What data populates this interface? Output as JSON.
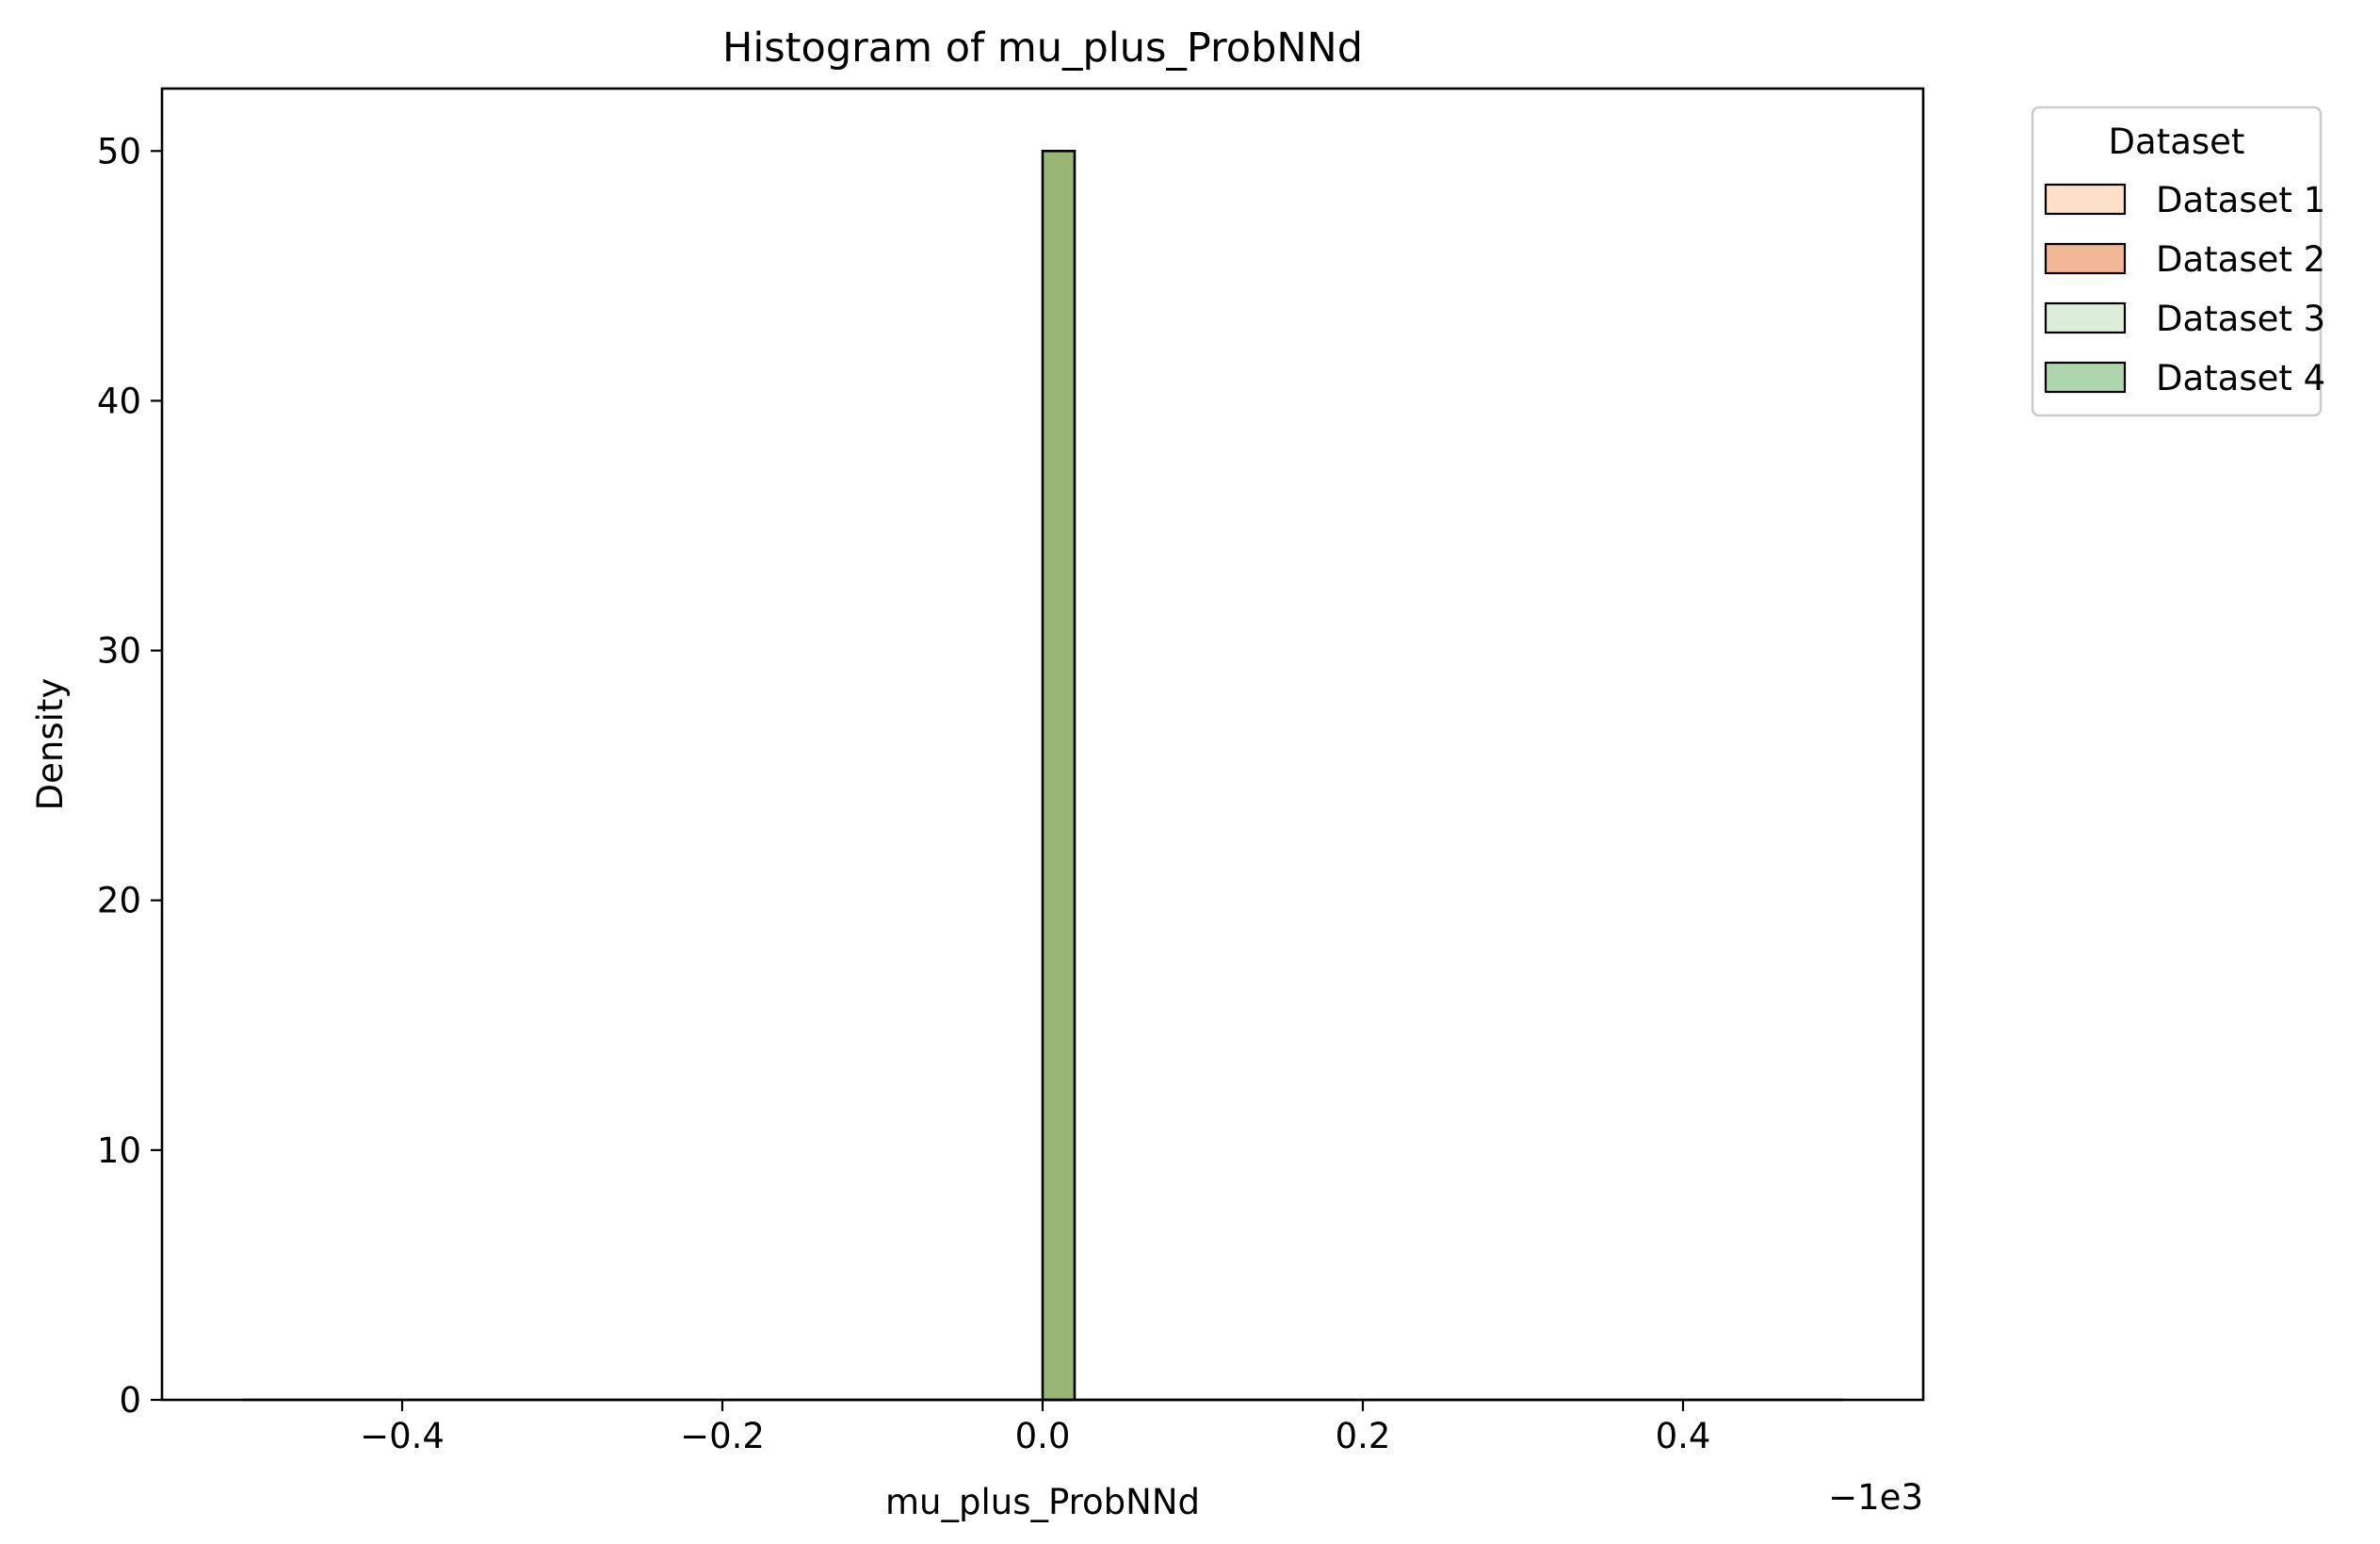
{
  "chart_data": {
    "type": "bar",
    "title": "Histogram of mu_plus_ProbNNd",
    "xlabel": "mu_plus_ProbNNd",
    "ylabel": "Density",
    "x_offset_label": "−1e3",
    "xlim": [
      -0.55,
      0.55
    ],
    "ylim": [
      0,
      52.5
    ],
    "xticks": [
      -0.4,
      -0.2,
      0.0,
      0.2,
      0.4
    ],
    "xtick_labels": [
      "−0.4",
      "−0.2",
      "0.0",
      "0.2",
      "0.4"
    ],
    "yticks": [
      0,
      10,
      20,
      30,
      40,
      50
    ],
    "ytick_labels": [
      "0",
      "10",
      "20",
      "30",
      "40",
      "50"
    ],
    "baseline_range": [
      -0.5,
      0.5
    ],
    "bins": [
      {
        "x0": 0.0,
        "x1": 0.02,
        "value": 50
      }
    ],
    "bar_color": "#98b575",
    "grid": false,
    "legend": {
      "title": "Dataset",
      "placement": "outside-top-right",
      "entries": [
        {
          "name": "Dataset 1",
          "color": "#fde0c8"
        },
        {
          "name": "Dataset 2",
          "color": "#f2b797"
        },
        {
          "name": "Dataset 3",
          "color": "#dceed8"
        },
        {
          "name": "Dataset 4",
          "color": "#afd5ae"
        }
      ]
    }
  }
}
